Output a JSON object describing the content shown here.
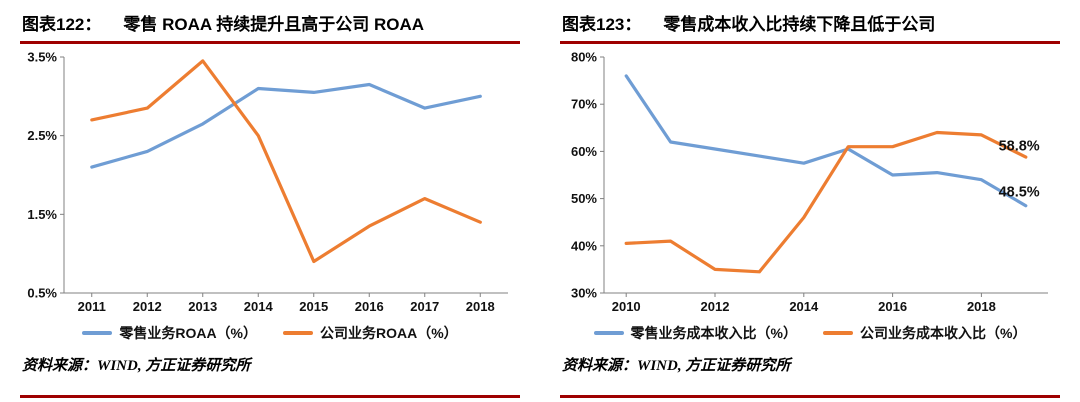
{
  "page": {
    "background": "#ffffff",
    "rule_color": "#9e0000",
    "axis_color": "#808080"
  },
  "charts": [
    {
      "title_prefix": "图表122：",
      "title": "零售 ROAA 持续提升且高于公司 ROAA",
      "source": "资料来源：WIND, 方正证券研究所",
      "chart_data": {
        "type": "line",
        "categories": [
          "2011",
          "2012",
          "2013",
          "2014",
          "2015",
          "2016",
          "2017",
          "2018"
        ],
        "xtick_indices": [
          0,
          1,
          2,
          3,
          4,
          5,
          6,
          7
        ],
        "series": [
          {
            "name": "零售业务ROAA（%）",
            "color": "#6f9dd4",
            "values": [
              2.1,
              2.3,
              2.65,
              3.1,
              3.05,
              3.15,
              2.85,
              3.0
            ]
          },
          {
            "name": "公司业务ROAA（%）",
            "color": "#ed7d31",
            "values": [
              2.7,
              2.85,
              3.45,
              2.5,
              0.9,
              1.35,
              1.7,
              1.4
            ]
          }
        ],
        "ylim": [
          0.5,
          3.5
        ],
        "ytick_values": [
          0.5,
          1.5,
          2.5,
          3.5
        ],
        "ytick_labels": [
          "0.5%",
          "1.5%",
          "2.5%",
          "3.5%"
        ],
        "annotations": [],
        "grid": false,
        "legend_position": "bottom"
      }
    },
    {
      "title_prefix": "图表123：",
      "title": "零售成本收入比持续下降且低于公司",
      "source": "资料来源：WIND, 方正证券研究所",
      "chart_data": {
        "type": "line",
        "categories": [
          "2010",
          "2011",
          "2012",
          "2013",
          "2014",
          "2015",
          "2016",
          "2017",
          "2018",
          "2019"
        ],
        "xtick_indices": [
          0,
          2,
          4,
          6,
          8
        ],
        "series": [
          {
            "name": "零售业务成本收入比（%）",
            "color": "#6f9dd4",
            "values": [
              76,
              62,
              60.5,
              59,
              57.5,
              60.5,
              55,
              55.5,
              54,
              48.5
            ]
          },
          {
            "name": "公司业务成本收入比（%）",
            "color": "#ed7d31",
            "values": [
              40.5,
              41,
              35,
              34.5,
              46,
              61,
              61,
              64,
              63.5,
              58.8
            ]
          }
        ],
        "ylim": [
          30,
          80
        ],
        "ytick_values": [
          30,
          40,
          50,
          60,
          70,
          80
        ],
        "ytick_labels": [
          "30%",
          "40%",
          "50%",
          "60%",
          "70%",
          "80%"
        ],
        "annotations": [
          {
            "text": "58.8%",
            "xi": 8.85,
            "y": 61.2
          },
          {
            "text": "48.5%",
            "xi": 8.85,
            "y": 51.5
          }
        ],
        "grid": false,
        "legend_position": "bottom"
      }
    }
  ]
}
